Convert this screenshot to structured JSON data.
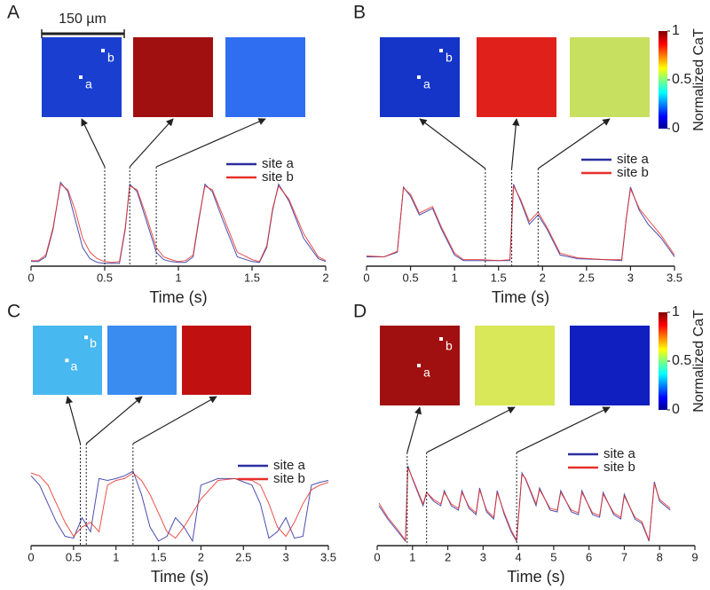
{
  "chart_data": [
    {
      "type": "line",
      "panel": "A",
      "xlabel": "Time (s)",
      "xlim": [
        0,
        2
      ],
      "xticks": [
        0,
        0.5,
        1,
        1.5,
        2
      ],
      "ylim": [
        0,
        1
      ],
      "scale_bar": "150 µm",
      "image_labels": [
        "a",
        "b"
      ],
      "snapshot_colors": [
        "#1a3fd0",
        "#a01010",
        "#2f6ef0"
      ],
      "marker_times": [
        0.5,
        0.67,
        0.85
      ],
      "x": [
        0,
        0.05,
        0.1,
        0.15,
        0.2,
        0.25,
        0.3,
        0.35,
        0.4,
        0.45,
        0.5,
        0.55,
        0.6,
        0.64,
        0.67,
        0.72,
        0.78,
        0.85,
        0.9,
        0.95,
        1.0,
        1.05,
        1.1,
        1.14,
        1.18,
        1.23,
        1.3,
        1.4,
        1.5,
        1.55,
        1.6,
        1.64,
        1.68,
        1.75,
        1.85,
        1.95,
        2.0
      ],
      "series": [
        {
          "name": "site a",
          "color": "#2b2fa0",
          "values": [
            0.05,
            0.05,
            0.1,
            0.4,
            0.9,
            0.8,
            0.5,
            0.2,
            0.08,
            0.04,
            0.03,
            0.03,
            0.03,
            0.4,
            0.88,
            0.8,
            0.5,
            0.15,
            0.07,
            0.05,
            0.04,
            0.04,
            0.1,
            0.5,
            0.88,
            0.8,
            0.5,
            0.1,
            0.05,
            0.04,
            0.2,
            0.6,
            0.88,
            0.7,
            0.3,
            0.08,
            0.05
          ]
        },
        {
          "name": "site b",
          "color": "#e8302a",
          "values": [
            0.06,
            0.06,
            0.12,
            0.42,
            0.88,
            0.82,
            0.6,
            0.3,
            0.15,
            0.08,
            0.05,
            0.04,
            0.05,
            0.42,
            0.86,
            0.82,
            0.55,
            0.2,
            0.1,
            0.07,
            0.05,
            0.06,
            0.12,
            0.52,
            0.86,
            0.82,
            0.55,
            0.15,
            0.07,
            0.05,
            0.22,
            0.62,
            0.86,
            0.72,
            0.35,
            0.1,
            0.06
          ]
        }
      ]
    },
    {
      "type": "line",
      "panel": "B",
      "xlabel": "Time (s)",
      "xlim": [
        0,
        3.5
      ],
      "xticks": [
        0,
        0.5,
        1,
        1.5,
        2,
        2.5,
        3,
        3.5
      ],
      "ylim": [
        0,
        1
      ],
      "image_labels": [
        "a",
        "b"
      ],
      "snapshot_colors": [
        "#1535c8",
        "#e0201a",
        "#c8e060"
      ],
      "colorbar": {
        "label": "Normalized CaT",
        "lim": [
          0,
          1
        ],
        "ticks": [
          0,
          0.5,
          1
        ]
      },
      "marker_times": [
        1.35,
        1.65,
        1.95
      ],
      "x": [
        0,
        0.2,
        0.35,
        0.42,
        0.5,
        0.6,
        0.75,
        0.85,
        1.0,
        1.1,
        1.3,
        1.5,
        1.63,
        1.67,
        1.75,
        1.85,
        1.95,
        2.05,
        2.2,
        2.4,
        2.7,
        2.9,
        2.95,
        3.0,
        3.1,
        3.2,
        3.35,
        3.5
      ],
      "series": [
        {
          "name": "site a",
          "color": "#2b2fa0",
          "values": [
            0.1,
            0.1,
            0.15,
            0.85,
            0.75,
            0.55,
            0.62,
            0.4,
            0.12,
            0.06,
            0.06,
            0.06,
            0.06,
            0.88,
            0.7,
            0.45,
            0.55,
            0.4,
            0.12,
            0.08,
            0.07,
            0.06,
            0.5,
            0.85,
            0.6,
            0.45,
            0.3,
            0.1
          ]
        },
        {
          "name": "site b",
          "color": "#e8302a",
          "values": [
            0.11,
            0.1,
            0.16,
            0.84,
            0.77,
            0.57,
            0.64,
            0.42,
            0.14,
            0.07,
            0.07,
            0.06,
            0.07,
            0.86,
            0.72,
            0.48,
            0.58,
            0.42,
            0.14,
            0.09,
            0.07,
            0.07,
            0.5,
            0.83,
            0.62,
            0.5,
            0.33,
            0.12
          ]
        }
      ]
    },
    {
      "type": "line",
      "panel": "C",
      "xlabel": "Time (s)",
      "xlim": [
        0,
        3.5
      ],
      "xticks": [
        0,
        0.5,
        1,
        1.5,
        2,
        2.5,
        3,
        3.5
      ],
      "ylim": [
        0,
        1
      ],
      "image_labels": [
        "a",
        "b"
      ],
      "snapshot_colors": [
        "#48b8f0",
        "#3a8cf0",
        "#c01010"
      ],
      "marker_times": [
        0.58,
        0.65,
        1.2
      ],
      "x": [
        0,
        0.1,
        0.2,
        0.3,
        0.4,
        0.5,
        0.6,
        0.7,
        0.8,
        0.9,
        1.0,
        1.1,
        1.2,
        1.3,
        1.4,
        1.5,
        1.6,
        1.7,
        1.8,
        1.9,
        2.0,
        2.2,
        2.4,
        2.6,
        2.7,
        2.8,
        2.9,
        3.0,
        3.1,
        3.2,
        3.3,
        3.4,
        3.5
      ],
      "series": [
        {
          "name": "site a",
          "color": "#2b2fa0",
          "values": [
            0.75,
            0.65,
            0.45,
            0.25,
            0.1,
            0.08,
            0.3,
            0.15,
            0.72,
            0.7,
            0.72,
            0.75,
            0.8,
            0.55,
            0.2,
            0.05,
            0.1,
            0.3,
            0.2,
            0.05,
            0.65,
            0.72,
            0.72,
            0.65,
            0.45,
            0.08,
            0.15,
            0.3,
            0.08,
            0.1,
            0.65,
            0.68,
            0.7
          ]
        },
        {
          "name": "site b",
          "color": "#e8302a",
          "values": [
            0.78,
            0.75,
            0.65,
            0.45,
            0.25,
            0.1,
            0.2,
            0.25,
            0.15,
            0.65,
            0.7,
            0.72,
            0.78,
            0.7,
            0.55,
            0.35,
            0.15,
            0.08,
            0.2,
            0.35,
            0.5,
            0.7,
            0.72,
            0.7,
            0.65,
            0.45,
            0.2,
            0.1,
            0.25,
            0.45,
            0.6,
            0.65,
            0.68
          ]
        }
      ]
    },
    {
      "type": "line",
      "panel": "D",
      "xlabel": "Time (s)",
      "xlim": [
        0,
        9
      ],
      "xticks": [
        0,
        1,
        2,
        3,
        4,
        5,
        6,
        7,
        8,
        9
      ],
      "ylim": [
        0,
        1
      ],
      "image_labels": [
        "a",
        "b"
      ],
      "snapshot_colors": [
        "#a01010",
        "#d8e858",
        "#1020c0"
      ],
      "colorbar": {
        "label": "Normalized CaT",
        "lim": [
          0,
          1
        ],
        "ticks": [
          0,
          0.5,
          1
        ]
      },
      "marker_times": [
        0.85,
        1.4,
        3.95
      ],
      "x": [
        0.05,
        0.3,
        0.6,
        0.8,
        0.87,
        1.0,
        1.3,
        1.4,
        1.6,
        1.8,
        1.9,
        2.1,
        2.3,
        2.4,
        2.6,
        2.8,
        2.9,
        3.1,
        3.3,
        3.4,
        3.6,
        3.8,
        3.95,
        4.1,
        4.2,
        4.5,
        4.6,
        4.9,
        5.1,
        5.2,
        5.5,
        5.7,
        5.8,
        6.1,
        6.3,
        6.4,
        6.7,
        6.9,
        7.0,
        7.3,
        7.5,
        7.7,
        7.85,
        8.0,
        8.3
      ],
      "series": [
        {
          "name": "site a",
          "color": "#2b2fa0",
          "values": [
            0.45,
            0.3,
            0.15,
            0.05,
            0.9,
            0.75,
            0.45,
            0.6,
            0.5,
            0.45,
            0.62,
            0.45,
            0.4,
            0.62,
            0.42,
            0.35,
            0.65,
            0.38,
            0.3,
            0.62,
            0.35,
            0.15,
            0.05,
            0.82,
            0.75,
            0.45,
            0.65,
            0.4,
            0.38,
            0.62,
            0.38,
            0.35,
            0.62,
            0.35,
            0.32,
            0.6,
            0.35,
            0.3,
            0.58,
            0.3,
            0.25,
            0.05,
            0.72,
            0.5,
            0.4
          ]
        },
        {
          "name": "site b",
          "color": "#e8302a",
          "values": [
            0.48,
            0.32,
            0.17,
            0.06,
            0.88,
            0.76,
            0.47,
            0.6,
            0.52,
            0.47,
            0.6,
            0.47,
            0.42,
            0.6,
            0.44,
            0.37,
            0.63,
            0.4,
            0.32,
            0.6,
            0.37,
            0.17,
            0.06,
            0.8,
            0.76,
            0.47,
            0.63,
            0.42,
            0.4,
            0.6,
            0.4,
            0.37,
            0.6,
            0.37,
            0.34,
            0.58,
            0.37,
            0.32,
            0.56,
            0.32,
            0.27,
            0.06,
            0.7,
            0.52,
            0.42
          ]
        }
      ]
    }
  ]
}
